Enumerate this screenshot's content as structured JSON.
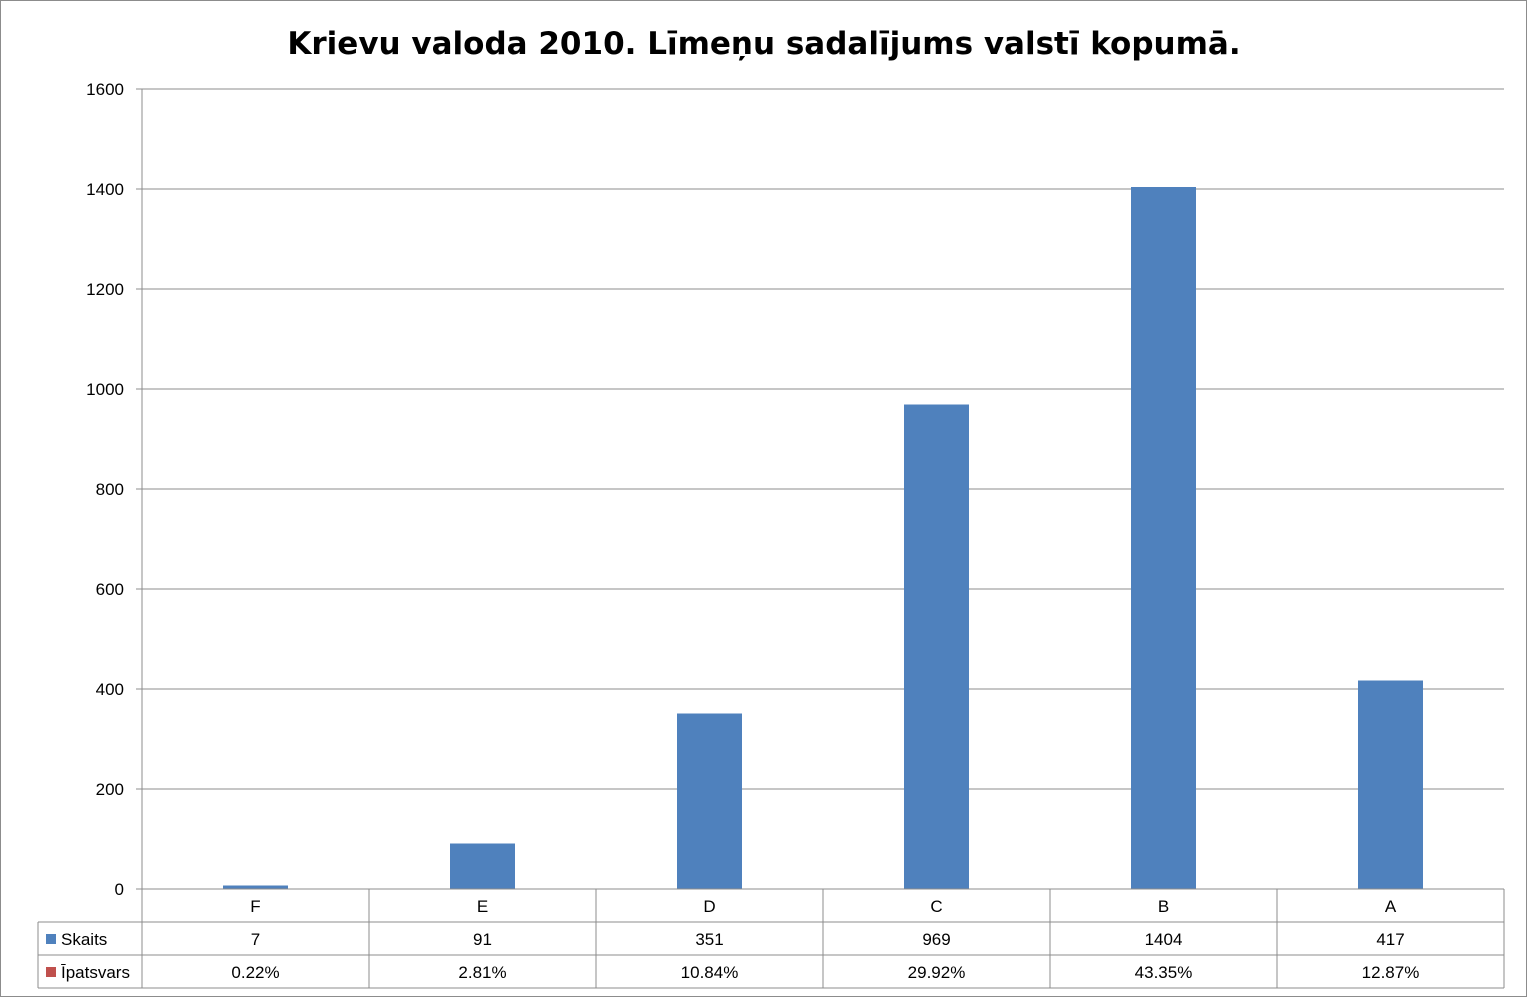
{
  "chart_data": {
    "type": "bar",
    "title": "Krievu valoda 2010. Līmeņu sadalījums valstī kopumā.",
    "categories": [
      "F",
      "E",
      "D",
      "C",
      "B",
      "A"
    ],
    "series": [
      {
        "name": "Skaits",
        "values": [
          7,
          91,
          351,
          969,
          1404,
          417
        ],
        "color": "#4f81bd",
        "plotted": true
      },
      {
        "name": "Īpatsvars",
        "values": [
          "0.22%",
          "2.81%",
          "10.84%",
          "29.92%",
          "43.35%",
          "12.87%"
        ],
        "color": "#c0504d",
        "plotted": false
      }
    ],
    "y_ticks": [
      0,
      200,
      400,
      600,
      800,
      1000,
      1200,
      1400,
      1600
    ],
    "ylim": [
      0,
      1600
    ],
    "grid": true,
    "legend": "data-table",
    "data_table": true,
    "colors": {
      "bar": "#4f81bd",
      "grid": "#8c8c8c",
      "table_border": "#8c8c8c"
    }
  }
}
